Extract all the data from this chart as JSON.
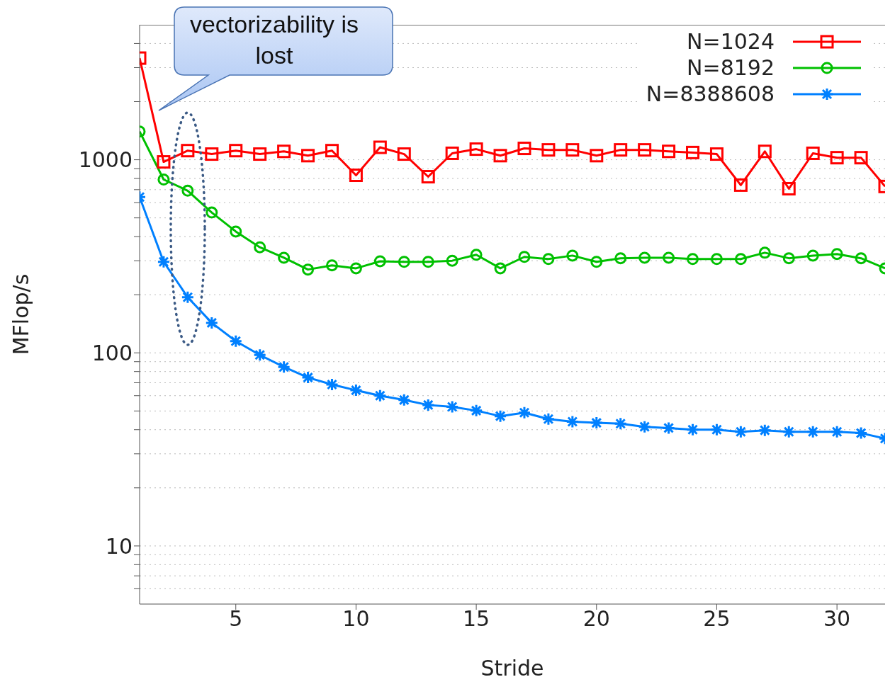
{
  "chart_data": {
    "type": "line",
    "xlabel": "Stride",
    "ylabel": "MFlop/s",
    "annotations": [
      "vectorizability is lost"
    ],
    "x": [
      1,
      2,
      3,
      4,
      5,
      6,
      7,
      8,
      9,
      10,
      11,
      12,
      13,
      14,
      15,
      16,
      17,
      18,
      19,
      20,
      21,
      22,
      23,
      24,
      25,
      26,
      27,
      28,
      29,
      30,
      31,
      32
    ],
    "xlim": [
      1,
      32
    ],
    "xticks": [
      5,
      10,
      15,
      20,
      25,
      30
    ],
    "log": "y",
    "ylim": [
      5,
      5000
    ],
    "yticks": [
      {
        "value": 6,
        "label": null
      },
      {
        "value": 7,
        "label": null
      },
      {
        "value": 8,
        "label": null
      },
      {
        "value": 9,
        "label": null
      },
      10,
      {
        "value": 20,
        "label": null
      },
      {
        "value": 30,
        "label": null
      },
      {
        "value": 40,
        "label": null
      },
      {
        "value": 50,
        "label": null
      },
      {
        "value": 60,
        "label": null
      },
      {
        "value": 70,
        "label": null
      },
      {
        "value": 80,
        "label": null
      },
      {
        "value": 90,
        "label": null
      },
      100,
      {
        "value": 200,
        "label": null
      },
      {
        "value": 300,
        "label": null
      },
      {
        "value": 400,
        "label": null
      },
      {
        "value": 500,
        "label": null
      },
      {
        "value": 600,
        "label": null
      },
      {
        "value": 700,
        "label": null
      },
      {
        "value": 800,
        "label": null
      },
      {
        "value": 900,
        "label": null
      },
      1000,
      {
        "value": 2000,
        "label": null
      },
      {
        "value": 3000,
        "label": null
      },
      {
        "value": 4000,
        "label": null
      }
    ],
    "grid": "y",
    "legend": "top right",
    "line_style": "solid",
    "series": [
      {
        "name": "N=1024",
        "color": "#ff0000",
        "marker": "square",
        "values": [
          3360,
          975,
          1115,
          1070,
          1115,
          1070,
          1105,
          1050,
          1115,
          831,
          1160,
          1070,
          817,
          1080,
          1135,
          1050,
          1145,
          1125,
          1125,
          1050,
          1125,
          1125,
          1105,
          1090,
          1070,
          739,
          1105,
          708,
          1080,
          1025,
          1025,
          727
        ]
      },
      {
        "name": "N=8192",
        "color": "#00c000",
        "marker": "circle",
        "values": [
          1400,
          790,
          691,
          533,
          425,
          352,
          311,
          270,
          284,
          274,
          298,
          296,
          296,
          300,
          322,
          274,
          314,
          306,
          319,
          296,
          309,
          311,
          311,
          306,
          306,
          306,
          330,
          309,
          319,
          325,
          309,
          274
        ]
      },
      {
        "name": "N=8388608",
        "color": "#0080ff",
        "marker": "cross",
        "values": [
          641,
          296,
          194,
          143,
          115,
          97.5,
          84.5,
          74.5,
          68.5,
          64,
          60,
          57,
          53.7,
          52.5,
          50.2,
          47,
          49,
          45.4,
          44,
          43.4,
          43,
          41.4,
          40.8,
          40,
          40,
          39,
          39.7,
          39,
          39,
          39,
          38.4,
          36
        ]
      }
    ]
  }
}
